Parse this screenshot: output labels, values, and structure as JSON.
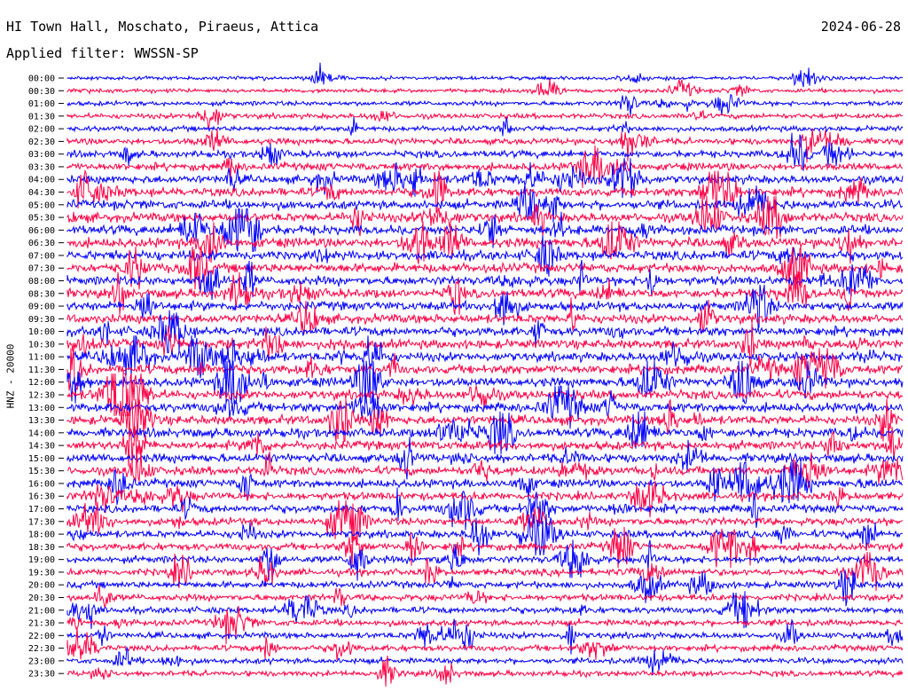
{
  "header": {
    "station": "HI Town Hall, Moschato, Piraeus, Attica",
    "date": "2024-06-28",
    "filter": "Applied filter: WWSSN-SP"
  },
  "chart_data": {
    "type": "line",
    "title": "HI Town Hall, Moschato, Piraeus, Attica",
    "subtitle": "Applied filter: WWSSN-SP",
    "date": "2024-06-28",
    "ylabel": "HNZ - 20000",
    "xlabel": "",
    "row_labels": [
      "00:00",
      "00:30",
      "01:00",
      "01:30",
      "02:00",
      "02:30",
      "03:00",
      "03:30",
      "04:00",
      "04:30",
      "05:00",
      "05:30",
      "06:00",
      "06:30",
      "07:00",
      "07:30",
      "08:00",
      "08:30",
      "09:00",
      "09:30",
      "10:00",
      "10:30",
      "11:00",
      "11:30",
      "12:00",
      "12:30",
      "13:00",
      "13:30",
      "14:00",
      "14:30",
      "15:00",
      "15:30",
      "16:00",
      "16:30",
      "17:00",
      "17:30",
      "18:00",
      "18:30",
      "19:00",
      "19:30",
      "20:00",
      "20:30",
      "21:00",
      "21:30",
      "22:00",
      "22:30",
      "23:00",
      "23:30"
    ],
    "series_colors": [
      "#0000ff",
      "#ff0044"
    ],
    "trace_duration_minutes": 30,
    "color_alternation": "blue, red per row",
    "grid": false,
    "legend": "none",
    "activity_level": [
      0.6,
      0.7,
      1.0,
      1.2,
      1.3,
      1.7,
      2.0,
      2.3,
      2.6,
      2.8,
      2.9,
      3.0,
      3.1,
      3.2,
      3.2,
      3.1,
      3.0,
      3.0,
      3.0,
      3.0,
      3.0,
      3.0,
      3.0,
      3.0,
      3.0,
      3.0,
      3.0,
      3.0,
      3.0,
      2.9,
      2.8,
      2.7,
      2.6,
      2.5,
      2.5,
      2.4,
      2.3,
      2.2,
      2.1,
      2.0,
      2.0,
      1.9,
      1.8,
      1.7,
      1.7,
      1.6,
      1.5,
      1.4
    ]
  }
}
